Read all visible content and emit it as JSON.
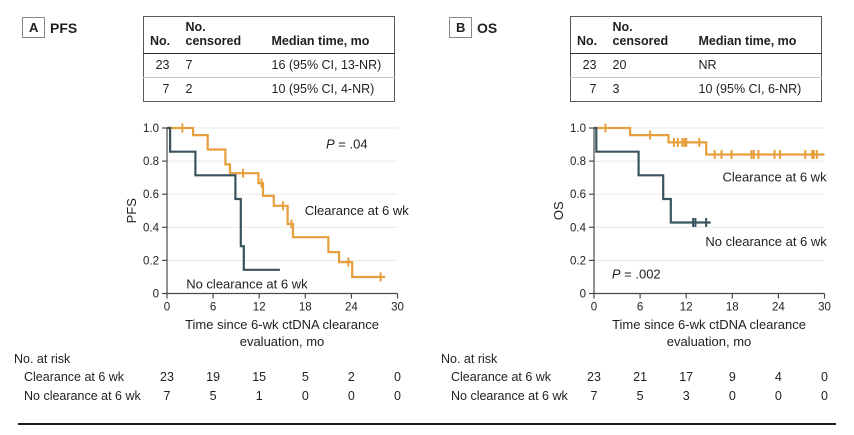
{
  "colors": {
    "clearance": "#E79E3C",
    "no_clearance": "#3A545F",
    "grid": "#E8E8E4",
    "axis": "#4A4A4A",
    "text": "#1F1F1F",
    "rule": "#1C1C1C",
    "table_border": "#5A5A5A"
  },
  "panels": [
    {
      "tag": "A",
      "title": "PFS",
      "summary": {
        "headers": [
          "No.",
          "No. censored",
          "Median time, mo"
        ],
        "rows": [
          [
            "23",
            "7",
            "16 (95% CI, 13-NR)"
          ],
          [
            "7",
            "2",
            "10 (95% CI, 4-NR)"
          ]
        ]
      },
      "xlabel_line1": "Time since 6-wk ctDNA clearance",
      "xlabel_line2": "evaluation, mo",
      "risk_title": "No. at risk"
    },
    {
      "tag": "B",
      "title": "OS",
      "summary": {
        "headers": [
          "No.",
          "No. censored",
          "Median time, mo"
        ],
        "rows": [
          [
            "23",
            "20",
            "NR"
          ],
          [
            "7",
            "3",
            "10 (95% CI, 6-NR)"
          ]
        ]
      },
      "xlabel_line1": "Time since 6-wk ctDNA clearance",
      "xlabel_line2": "evaluation, mo",
      "risk_title": "No. at risk"
    }
  ],
  "chart_data": [
    {
      "type": "line",
      "subtype": "kaplan-meier-step",
      "title": "PFS",
      "xlabel": "Time since 6-wk ctDNA clearance evaluation, mo",
      "ylabel": "PFS",
      "xlim": [
        0,
        30
      ],
      "ylim": [
        0,
        1.0
      ],
      "xticks": [
        0,
        6,
        12,
        18,
        24,
        30
      ],
      "yticks": [
        0,
        0.2,
        0.4,
        0.6,
        0.8,
        1.0
      ],
      "grid": "horizontal",
      "pvalue": "P = .04",
      "pvalue_pos": {
        "x": 23.4,
        "y": 0.9
      },
      "series": [
        {
          "name": "Clearance at 6 wk",
          "color": "#E79E3C",
          "points": [
            [
              0,
              1.0
            ],
            [
              3.4,
              1.0
            ],
            [
              3.4,
              0.957
            ],
            [
              5.3,
              0.957
            ],
            [
              5.3,
              0.87
            ],
            [
              7.6,
              0.87
            ],
            [
              7.6,
              0.78
            ],
            [
              8.2,
              0.78
            ],
            [
              8.2,
              0.727
            ],
            [
              11.9,
              0.727
            ],
            [
              11.9,
              0.667
            ],
            [
              12.5,
              0.667
            ],
            [
              12.5,
              0.59
            ],
            [
              13.9,
              0.59
            ],
            [
              13.9,
              0.53
            ],
            [
              15.7,
              0.53
            ],
            [
              15.7,
              0.42
            ],
            [
              16.4,
              0.42
            ],
            [
              16.4,
              0.34
            ],
            [
              21.0,
              0.34
            ],
            [
              21.0,
              0.25
            ],
            [
              22.4,
              0.25
            ],
            [
              22.4,
              0.19
            ],
            [
              24.1,
              0.19
            ],
            [
              24.1,
              0.1
            ],
            [
              28.4,
              0.1
            ]
          ],
          "censors": [
            [
              2.0,
              1.0
            ],
            [
              9.9,
              0.727
            ],
            [
              12.3,
              0.667
            ],
            [
              15.1,
              0.53
            ],
            [
              16.2,
              0.42
            ],
            [
              23.6,
              0.19
            ],
            [
              27.8,
              0.1
            ]
          ],
          "label_pos": {
            "x": 24.7,
            "y": 0.5
          }
        },
        {
          "name": "No clearance at 6 wk",
          "color": "#3A545F",
          "points": [
            [
              0,
              1.0
            ],
            [
              0.4,
              1.0
            ],
            [
              0.4,
              0.857
            ],
            [
              3.7,
              0.857
            ],
            [
              3.7,
              0.714
            ],
            [
              8.9,
              0.714
            ],
            [
              8.9,
              0.571
            ],
            [
              9.6,
              0.571
            ],
            [
              9.6,
              0.286
            ],
            [
              10.0,
              0.286
            ],
            [
              10.0,
              0.143
            ],
            [
              14.7,
              0.143
            ]
          ],
          "censors": [],
          "label_pos": {
            "x": 10.4,
            "y": 0.055
          }
        }
      ],
      "risk_table": {
        "title": "No. at risk",
        "times": [
          0,
          6,
          12,
          18,
          24,
          30
        ],
        "rows": [
          {
            "label": "Clearance at 6 wk",
            "counts": [
              23,
              19,
              15,
              5,
              2,
              0
            ]
          },
          {
            "label": "No clearance at 6 wk",
            "counts": [
              7,
              5,
              1,
              0,
              0,
              0
            ]
          }
        ]
      }
    },
    {
      "type": "line",
      "subtype": "kaplan-meier-step",
      "title": "OS",
      "xlabel": "Time since 6-wk ctDNA clearance evaluation, mo",
      "ylabel": "OS",
      "xlim": [
        0,
        30
      ],
      "ylim": [
        0,
        1.0
      ],
      "xticks": [
        0,
        6,
        12,
        18,
        24,
        30
      ],
      "yticks": [
        0,
        0.2,
        0.4,
        0.6,
        0.8,
        1.0
      ],
      "grid": "horizontal",
      "pvalue": "P = .002",
      "pvalue_pos": {
        "x": 5.5,
        "y": 0.115
      },
      "series": [
        {
          "name": "Clearance at 6 wk",
          "color": "#E79E3C",
          "points": [
            [
              0,
              1.0
            ],
            [
              4.7,
              1.0
            ],
            [
              4.7,
              0.957
            ],
            [
              9.7,
              0.957
            ],
            [
              9.7,
              0.913
            ],
            [
              14.6,
              0.913
            ],
            [
              14.6,
              0.84
            ],
            [
              30,
              0.84
            ]
          ],
          "censors": [
            [
              1.5,
              1.0
            ],
            [
              7.3,
              0.957
            ],
            [
              10.4,
              0.913
            ],
            [
              10.9,
              0.913
            ],
            [
              11.5,
              0.913
            ],
            [
              11.8,
              0.913
            ],
            [
              12.0,
              0.913
            ],
            [
              13.7,
              0.913
            ],
            [
              15.7,
              0.84
            ],
            [
              16.6,
              0.84
            ],
            [
              17.9,
              0.84
            ],
            [
              20.5,
              0.84
            ],
            [
              20.8,
              0.84
            ],
            [
              21.4,
              0.84
            ],
            [
              23.5,
              0.84
            ],
            [
              24.2,
              0.84
            ],
            [
              27.5,
              0.84
            ],
            [
              28.4,
              0.84
            ],
            [
              28.6,
              0.84
            ],
            [
              29.0,
              0.84
            ]
          ],
          "label_pos": {
            "x": 23.5,
            "y": 0.7
          }
        },
        {
          "name": "No clearance at 6 wk",
          "color": "#3A545F",
          "points": [
            [
              0,
              1.0
            ],
            [
              0.3,
              1.0
            ],
            [
              0.3,
              0.857
            ],
            [
              5.8,
              0.857
            ],
            [
              5.8,
              0.714
            ],
            [
              9.0,
              0.714
            ],
            [
              9.0,
              0.571
            ],
            [
              10.0,
              0.571
            ],
            [
              10.0,
              0.429
            ],
            [
              15.2,
              0.429
            ]
          ],
          "censors": [
            [
              12.9,
              0.429
            ],
            [
              13.2,
              0.429
            ],
            [
              14.6,
              0.429
            ]
          ],
          "label_pos": {
            "x": 22.4,
            "y": 0.31
          }
        }
      ],
      "risk_table": {
        "title": "No. at risk",
        "times": [
          0,
          6,
          12,
          18,
          24,
          30
        ],
        "rows": [
          {
            "label": "Clearance at 6 wk",
            "counts": [
              23,
              21,
              17,
              9,
              4,
              0
            ]
          },
          {
            "label": "No clearance at 6 wk",
            "counts": [
              7,
              5,
              3,
              0,
              0,
              0
            ]
          }
        ]
      }
    }
  ]
}
